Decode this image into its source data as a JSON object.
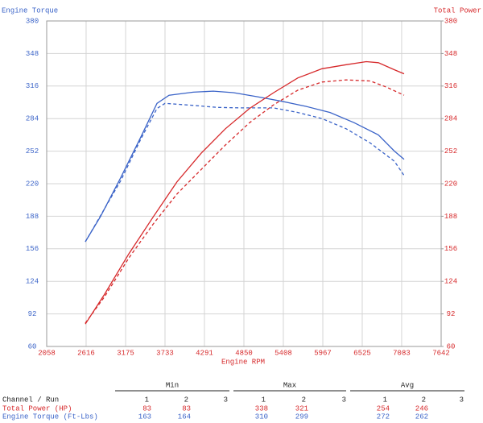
{
  "chart_data": {
    "type": "line",
    "y_label": "Engine Torque",
    "y2_label": "Total Power",
    "x_label": "Engine RPM",
    "xlim": [
      2058,
      7642
    ],
    "xticks": [
      2058,
      2616,
      3175,
      3733,
      4291,
      4850,
      5408,
      5967,
      6525,
      7083,
      7642
    ],
    "ylim": [
      60,
      380
    ],
    "yticks": [
      60,
      92,
      124,
      156,
      188,
      220,
      252,
      284,
      316,
      348,
      380
    ],
    "y2lim": [
      60,
      380
    ],
    "y2ticks": [
      60,
      92,
      124,
      156,
      188,
      220,
      252,
      284,
      316,
      348,
      380
    ],
    "grid": true,
    "y_color": "#3a63c8",
    "y2_color": "#d6282a",
    "series": [
      {
        "name": "Engine Torque run 1",
        "color": "#3a63c8",
        "line_style": "solid",
        "x": [
          2605,
          2821,
          3106,
          3391,
          3619,
          3790,
          4132,
          4417,
          4702,
          5044,
          5386,
          5727,
          6069,
          6411,
          6753,
          6981,
          7118
        ],
        "values": [
          163,
          188,
          226,
          266,
          299,
          307,
          310,
          311,
          309.5,
          305.5,
          301,
          296,
          290,
          280,
          268,
          252,
          244
        ]
      },
      {
        "name": "Engine Torque run 2",
        "color": "#3a63c8",
        "line_style": "dashed",
        "x": [
          2605,
          2673,
          3106,
          3391,
          3619,
          3733,
          4132,
          4474,
          4816,
          5272,
          5614,
          5955,
          6297,
          6639,
          6981,
          7118
        ],
        "values": [
          163,
          171,
          223,
          264,
          294,
          299,
          297,
          295,
          294.5,
          294.5,
          290,
          284,
          274,
          260,
          242,
          228
        ]
      },
      {
        "name": "Total Power run 1",
        "color": "#d6282a",
        "line_style": "solid",
        "axis": "y2",
        "x": [
          2605,
          2878,
          3220,
          3562,
          3904,
          4246,
          4588,
          4930,
          5272,
          5614,
          5955,
          6297,
          6582,
          6753,
          6981,
          7118
        ],
        "values": [
          82,
          111.5,
          151,
          187,
          222,
          250,
          274,
          294,
          309.5,
          324,
          333,
          337,
          340,
          339,
          332,
          328
        ]
      },
      {
        "name": "Total Power run 2",
        "color": "#d6282a",
        "line_style": "dashed",
        "axis": "y2",
        "x": [
          2605,
          2878,
          3220,
          3562,
          3904,
          4246,
          4588,
          4930,
          5272,
          5614,
          5955,
          6297,
          6639,
          6867,
          7118
        ],
        "values": [
          83,
          109,
          147,
          180,
          210,
          234,
          258,
          280,
          297.6,
          312,
          320,
          322,
          321,
          315,
          307
        ]
      }
    ]
  },
  "table": {
    "groups": [
      "Min",
      "Max",
      "Avg"
    ],
    "header": "Channel / Run",
    "runs": [
      "1",
      "2",
      "3"
    ],
    "rows": [
      {
        "label": "Total Power (HP)",
        "color": "#d6282a",
        "min": [
          "83",
          "83"
        ],
        "max": [
          "338",
          "321"
        ],
        "avg": [
          "254",
          "246"
        ]
      },
      {
        "label": "Engine Torque (Ft-Lbs)",
        "color": "#3a63c8",
        "min": [
          "163",
          "164"
        ],
        "max": [
          "310",
          "299"
        ],
        "avg": [
          "272",
          "262"
        ]
      }
    ]
  }
}
